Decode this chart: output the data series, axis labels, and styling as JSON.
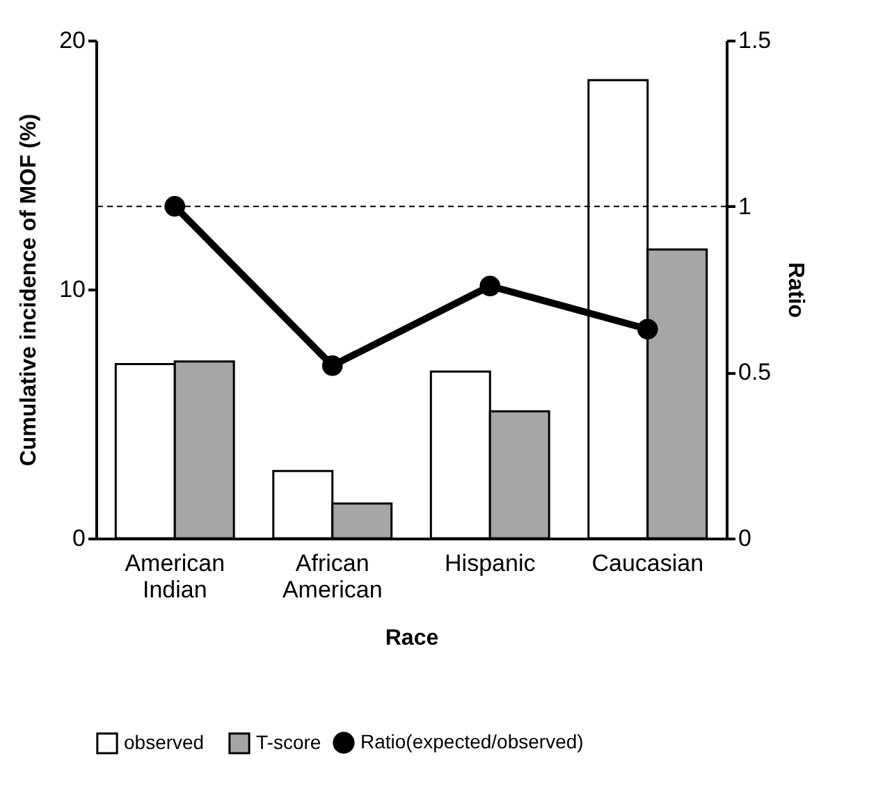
{
  "chart_data": {
    "type": "bar",
    "categories": [
      "American Indian",
      "African American",
      "Hispanic",
      "Caucasian"
    ],
    "xlabel": "Race",
    "ylabel": "Cumulative incidence of MOF (%)",
    "y2label": "Ratio",
    "series": [
      {
        "name": "observed",
        "color": "#ffffff",
        "values": [
          7.0,
          2.7,
          6.7,
          18.4
        ]
      },
      {
        "name": "T-score",
        "color": "#a6a6a6",
        "values": [
          7.1,
          1.4,
          5.1,
          11.6
        ]
      },
      {
        "name": "Ratio(expected/observed)",
        "type": "line",
        "axis": "y2",
        "color": "#000000",
        "values": [
          1.0,
          0.52,
          0.76,
          0.63
        ]
      }
    ],
    "ylim": [
      0,
      20
    ],
    "yticks": [
      0,
      10,
      20
    ],
    "y2lim": [
      0,
      1.5
    ],
    "y2ticks": [
      0,
      0.5,
      1,
      1.5
    ],
    "ref_lines": [
      {
        "axis": "y2",
        "value": 1,
        "line_style": "dashed",
        "color": "#000000"
      }
    ],
    "marker": "circle",
    "legend": "bottom",
    "grid": false
  }
}
